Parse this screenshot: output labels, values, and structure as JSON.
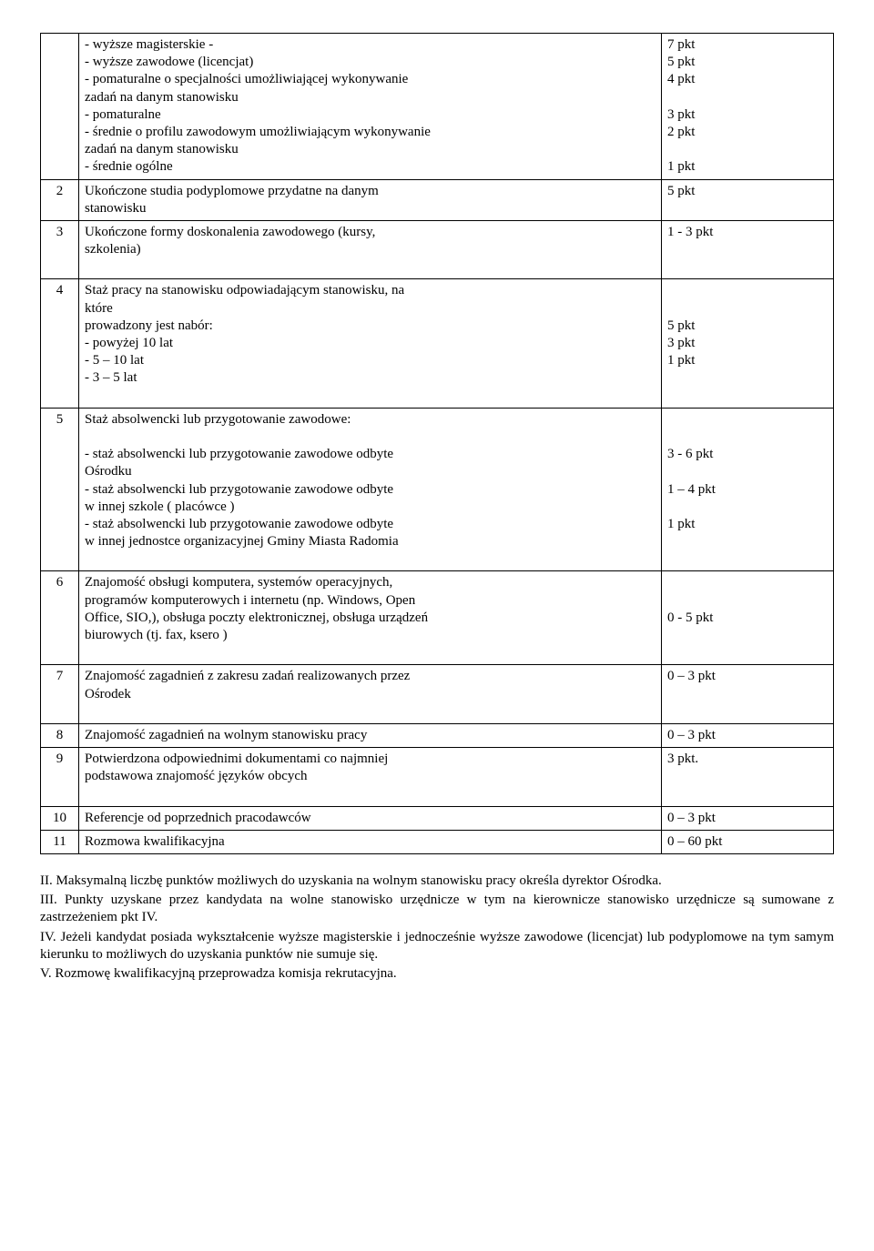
{
  "rows": {
    "r1": {
      "desc_lines": [
        "- wyższe magisterskie -",
        "- wyższe zawodowe (licencjat)",
        "- pomaturalne o specjalności umożliwiającej wykonywanie",
        "zadań na danym stanowisku",
        "- pomaturalne",
        "- średnie o profilu zawodowym umożliwiającym wykonywanie",
        "zadań na danym stanowisku",
        "- średnie ogólne"
      ],
      "pts_lines": [
        "7 pkt",
        "5 pkt",
        "4 pkt",
        "",
        "3 pkt",
        "2 pkt",
        "",
        "1 pkt"
      ]
    },
    "r2": {
      "num": "2",
      "desc_lines": [
        "Ukończone studia podyplomowe przydatne na danym",
        "stanowisku"
      ],
      "pts": "5 pkt"
    },
    "r3": {
      "num": "3",
      "desc_lines": [
        "Ukończone formy doskonalenia zawodowego (kursy,",
        "szkolenia)"
      ],
      "pts": "1 - 3 pkt"
    },
    "r4": {
      "num": "4",
      "desc_lines": [
        "Staż pracy na stanowisku odpowiadającym stanowisku, na",
        "które",
        "prowadzony jest nabór:",
        "- powyżej 10 lat",
        "- 5 – 10 lat",
        "- 3 – 5 lat"
      ],
      "pts_lines": [
        "",
        "",
        "5 pkt",
        "3 pkt",
        "1 pkt"
      ]
    },
    "r5": {
      "num": "5",
      "desc_lines": [
        "Staż absolwencki lub przygotowanie zawodowe:",
        "",
        "- staż absolwencki lub przygotowanie zawodowe odbyte",
        "Ośrodku",
        "- staż absolwencki lub przygotowanie zawodowe odbyte",
        "w innej szkole ( placówce )",
        "- staż absolwencki lub przygotowanie zawodowe odbyte",
        "w innej jednostce organizacyjnej Gminy Miasta Radomia"
      ],
      "pts_lines": [
        "",
        "",
        "3 - 6 pkt",
        "",
        "1 – 4 pkt",
        "",
        "1 pkt",
        ""
      ]
    },
    "r6": {
      "num": "6",
      "desc_lines": [
        "Znajomość obsługi komputera, systemów operacyjnych,",
        "programów komputerowych i internetu (np. Windows, Open",
        "Office, SIO,), obsługa poczty elektronicznej, obsługa urządzeń",
        "biurowych (tj. fax, ksero )"
      ],
      "pts_lines": [
        "",
        "",
        "0 - 5 pkt"
      ]
    },
    "r7": {
      "num": "7",
      "desc_lines": [
        "Znajomość zagadnień z zakresu zadań realizowanych przez",
        "Ośrodek"
      ],
      "pts": "0 – 3 pkt"
    },
    "r8": {
      "num": "8",
      "desc": "Znajomość zagadnień na wolnym stanowisku pracy",
      "pts": "0 – 3 pkt"
    },
    "r9": {
      "num": "9",
      "desc_lines": [
        "Potwierdzona odpowiednimi dokumentami co najmniej",
        "podstawowa znajomość języków obcych"
      ],
      "pts": "3 pkt."
    },
    "r10": {
      "num": "10",
      "desc": "Referencje od poprzednich pracodawców",
      "pts": "0 – 3 pkt"
    },
    "r11": {
      "num": "11",
      "desc": "Rozmowa kwalifikacyjna",
      "pts": "0 – 60 pkt"
    }
  },
  "footer": {
    "p2": "II. Maksymalną liczbę punktów możliwych do uzyskania na wolnym stanowisku pracy określa dyrektor Ośrodka.",
    "p3": "III. Punkty uzyskane przez kandydata na wolne stanowisko urzędnicze w tym na kierownicze stanowisko urzędnicze są sumowane z zastrzeżeniem pkt IV.",
    "p4": "IV. Jeżeli kandydat posiada wykształcenie wyższe magisterskie i jednocześnie wyższe zawodowe (licencjat) lub podyplomowe na tym samym kierunku to możliwych do uzyskania punktów nie sumuje się.",
    "p5": "V. Rozmowę kwalifikacyjną przeprowadza komisja rekrutacyjna."
  }
}
